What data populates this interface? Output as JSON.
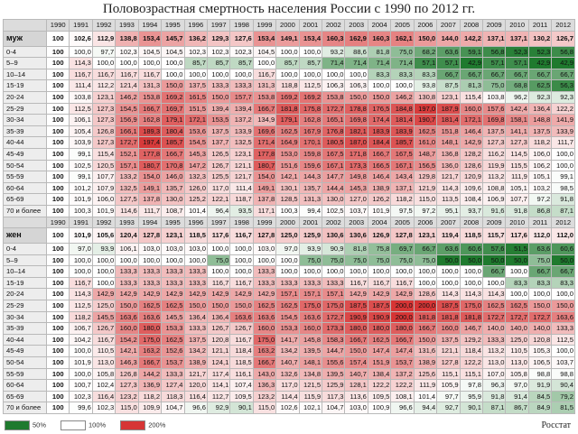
{
  "title": "Половозрастная смертность населения России с 1990 по 2012 гг.",
  "source": "Росстат",
  "legend": [
    {
      "label": "50%",
      "color": "#1f7a2e"
    },
    {
      "label": "100%",
      "color": "#ffffff"
    },
    {
      "label": "200%",
      "color": "#d63535"
    }
  ],
  "sections": [
    {
      "years": [
        "1990",
        "1991",
        "1992",
        "1993",
        "1994",
        "1995",
        "1996",
        "1997",
        "1998",
        "1999",
        "2000",
        "2001",
        "2002",
        "2003",
        "2004",
        "2005",
        "2006",
        "2007",
        "2008",
        "2009",
        "2010",
        "2011",
        "2012"
      ],
      "total": {
        "label": "муж",
        "values": [
          "100",
          "102,6",
          "112,9",
          "138,8",
          "153,4",
          "145,7",
          "136,2",
          "129,3",
          "127,6",
          "153,4",
          "149,1",
          "153,4",
          "160,3",
          "162,9",
          "160,3",
          "162,1",
          "150,0",
          "144,0",
          "142,2",
          "137,1",
          "137,1",
          "130,2",
          "126,7"
        ]
      },
      "rows": [
        {
          "label": "0-4",
          "values": [
            "100",
            "100,0",
            "97,7",
            "102,3",
            "104,5",
            "104,5",
            "102,3",
            "102,3",
            "102,3",
            "104,5",
            "100,0",
            "100,0",
            "93,2",
            "88,6",
            "81,8",
            "75,0",
            "68,2",
            "63,6",
            "59,1",
            "56,8",
            "52,3",
            "52,3",
            "56,8"
          ]
        },
        {
          "label": "5–9",
          "values": [
            "100",
            "114,3",
            "100,0",
            "100,0",
            "100,0",
            "100,0",
            "85,7",
            "85,7",
            "85,7",
            "100,0",
            "85,7",
            "85,7",
            "71,4",
            "71,4",
            "71,4",
            "71,4",
            "57,1",
            "57,1",
            "42,9",
            "57,1",
            "57,1",
            "42,9",
            "42,9"
          ]
        },
        {
          "label": "10–14",
          "values": [
            "100",
            "116,7",
            "116,7",
            "116,7",
            "116,7",
            "100,0",
            "100,0",
            "100,0",
            "100,0",
            "116,7",
            "100,0",
            "100,0",
            "100,0",
            "100,0",
            "83,3",
            "83,3",
            "83,3",
            "66,7",
            "66,7",
            "66,7",
            "66,7",
            "66,7",
            "66,7"
          ]
        },
        {
          "label": "15-19",
          "values": [
            "100",
            "111,4",
            "112,2",
            "121,4",
            "131,3",
            "150,0",
            "137,5",
            "133,3",
            "133,3",
            "131,3",
            "118,8",
            "112,5",
            "106,3",
            "106,3",
            "100,0",
            "100,0",
            "93,8",
            "87,5",
            "81,3",
            "75,0",
            "68,8",
            "62,5",
            "56,3"
          ]
        },
        {
          "label": "20-24",
          "values": [
            "100",
            "103,8",
            "123,1",
            "146,2",
            "153,8",
            "169,2",
            "161,5",
            "150,0",
            "157,7",
            "153,8",
            "169,2",
            "169,2",
            "153,8",
            "150,0",
            "150,0",
            "146,2",
            "130,8",
            "123,1",
            "115,4",
            "103,8",
            "96,2",
            "92,3",
            "92,3"
          ]
        },
        {
          "label": "25-29",
          "values": [
            "100",
            "112,5",
            "127,3",
            "154,5",
            "166,7",
            "169,7",
            "151,5",
            "139,4",
            "139,4",
            "166,7",
            "181,8",
            "175,8",
            "172,7",
            "178,8",
            "176,5",
            "184,8",
            "197,0",
            "187,9",
            "160,0",
            "157,6",
            "142,4",
            "136,4",
            "122,2"
          ]
        },
        {
          "label": "30-34",
          "values": [
            "100",
            "106,1",
            "127,3",
            "156,9",
            "162,8",
            "179,1",
            "172,1",
            "153,5",
            "137,2",
            "134,9",
            "179,1",
            "162,8",
            "165,1",
            "169,8",
            "174,4",
            "181,4",
            "190,7",
            "181,4",
            "172,1",
            "169,8",
            "158,1",
            "148,8",
            "141,9"
          ]
        },
        {
          "label": "35-39",
          "values": [
            "100",
            "105,4",
            "126,8",
            "166,1",
            "189,3",
            "180,4",
            "153,6",
            "137,5",
            "133,9",
            "169,6",
            "162,5",
            "167,9",
            "176,8",
            "182,1",
            "183,9",
            "183,9",
            "162,5",
            "151,8",
            "146,4",
            "137,5",
            "141,1",
            "137,5",
            "133,9"
          ]
        },
        {
          "label": "40-44",
          "values": [
            "100",
            "103,9",
            "127,3",
            "172,7",
            "197,4",
            "185,7",
            "154,5",
            "137,7",
            "132,5",
            "171,4",
            "164,9",
            "170,1",
            "180,5",
            "187,0",
            "184,4",
            "185,7",
            "161,0",
            "148,1",
            "142,9",
            "127,3",
            "127,3",
            "118,2",
            "111,7"
          ]
        },
        {
          "label": "45-49",
          "values": [
            "100",
            "99,1",
            "115,4",
            "152,1",
            "177,8",
            "166,7",
            "145,3",
            "126,5",
            "123,1",
            "177,8",
            "153,0",
            "159,8",
            "167,5",
            "171,8",
            "166,7",
            "167,5",
            "148,7",
            "136,8",
            "128,2",
            "116,2",
            "114,5",
            "106,0",
            "100,0"
          ]
        },
        {
          "label": "50-54",
          "values": [
            "100",
            "102,5",
            "120,5",
            "157,1",
            "180,7",
            "170,8",
            "147,2",
            "126,7",
            "121,1",
            "180,7",
            "151,6",
            "159,6",
            "167,1",
            "173,3",
            "166,5",
            "167,1",
            "156,5",
            "136,0",
            "128,6",
            "119,9",
            "115,5",
            "106,2",
            "100,0"
          ]
        },
        {
          "label": "55-59",
          "values": [
            "100",
            "99,1",
            "107,7",
            "133,2",
            "154,0",
            "146,0",
            "132,3",
            "125,5",
            "121,7",
            "154,0",
            "142,1",
            "144,3",
            "147,7",
            "149,8",
            "146,4",
            "143,4",
            "129,8",
            "121,7",
            "120,9",
            "113,2",
            "111,9",
            "105,1",
            "99,1"
          ]
        },
        {
          "label": "60-64",
          "values": [
            "100",
            "101,2",
            "107,9",
            "132,5",
            "149,1",
            "135,7",
            "126,0",
            "117,0",
            "111,4",
            "149,1",
            "130,1",
            "135,7",
            "144,4",
            "145,3",
            "138,9",
            "137,1",
            "121,9",
            "114,3",
            "109,6",
            "108,8",
            "105,1",
            "103,2",
            "98,5"
          ]
        },
        {
          "label": "65-69",
          "values": [
            "100",
            "101,9",
            "106,0",
            "127,5",
            "137,8",
            "130,0",
            "125,2",
            "122,1",
            "118,7",
            "137,8",
            "128,5",
            "131,3",
            "130,0",
            "127,0",
            "126,2",
            "118,2",
            "115,0",
            "113,5",
            "108,4",
            "106,9",
            "107,7",
            "97,2",
            "91,8"
          ]
        },
        {
          "label": "70 и более",
          "values": [
            "100",
            "100,3",
            "101,9",
            "114,6",
            "111,7",
            "108,7",
            "101,4",
            "96,4",
            "93,5",
            "117,1",
            "100,3",
            "99,4",
            "102,5",
            "103,7",
            "101,9",
            "97,5",
            "97,2",
            "95,1",
            "93,7",
            "91,6",
            "91,8",
            "86,8",
            "87,1"
          ]
        }
      ]
    },
    {
      "years": [
        "1990",
        "1991",
        "1992",
        "1993",
        "1994",
        "1995",
        "1996",
        "1997",
        "1998",
        "1999",
        "2000",
        "2001",
        "2002",
        "2003",
        "2004",
        "2005",
        "2006",
        "2007",
        "2008",
        "2009",
        "2010",
        "2011",
        "2012"
      ],
      "total": {
        "label": "жен",
        "values": [
          "100",
          "101,9",
          "105,6",
          "120,4",
          "127,8",
          "123,1",
          "118,5",
          "117,6",
          "116,7",
          "127,8",
          "125,0",
          "125,9",
          "130,6",
          "130,6",
          "126,9",
          "127,8",
          "123,1",
          "119,4",
          "118,5",
          "115,7",
          "117,6",
          "112,0",
          "112,0"
        ]
      },
      "rows": [
        {
          "label": "0-4",
          "values": [
            "100",
            "97,0",
            "93,9",
            "106,1",
            "103,0",
            "103,0",
            "103,0",
            "100,0",
            "100,0",
            "103,0",
            "97,0",
            "93,9",
            "90,9",
            "81,8",
            "75,8",
            "69,7",
            "66,7",
            "63,6",
            "60,6",
            "57,6",
            "51,5",
            "63,6",
            "60,6"
          ]
        },
        {
          "label": "5–9",
          "values": [
            "100",
            "100,0",
            "100,0",
            "100,0",
            "100,0",
            "100,0",
            "100,0",
            "75,0",
            "100,0",
            "100,0",
            "100,0",
            "75,0",
            "75,0",
            "75,0",
            "75,0",
            "75,0",
            "75,0",
            "50,0",
            "50,0",
            "50,0",
            "50,0",
            "75,0",
            "50,0"
          ]
        },
        {
          "label": "10–14",
          "values": [
            "100",
            "100,0",
            "100,0",
            "133,3",
            "133,3",
            "133,3",
            "133,3",
            "100,0",
            "100,0",
            "133,3",
            "100,0",
            "100,0",
            "100,0",
            "100,0",
            "100,0",
            "100,0",
            "100,0",
            "100,0",
            "100,0",
            "66,7",
            "100,0",
            "66,7",
            "66,7"
          ]
        },
        {
          "label": "15-19",
          "values": [
            "100",
            "116,7",
            "100,0",
            "133,3",
            "133,3",
            "133,3",
            "133,3",
            "116,7",
            "116,7",
            "133,3",
            "133,3",
            "133,3",
            "133,3",
            "116,7",
            "116,7",
            "116,7",
            "100,0",
            "100,0",
            "100,0",
            "100,0",
            "83,3",
            "83,3",
            "83,3"
          ]
        },
        {
          "label": "20-24",
          "values": [
            "100",
            "114,3",
            "142,9",
            "142,9",
            "142,9",
            "142,9",
            "142,9",
            "142,9",
            "142,9",
            "142,9",
            "157,1",
            "157,1",
            "157,1",
            "142,9",
            "142,9",
            "142,9",
            "128,6",
            "114,3",
            "114,3",
            "114,3",
            "100,0",
            "100,0",
            "100,0"
          ]
        },
        {
          "label": "25-29",
          "values": [
            "100",
            "112,5",
            "125,0",
            "150,0",
            "162,5",
            "162,5",
            "150,0",
            "150,0",
            "150,0",
            "162,5",
            "162,5",
            "175,0",
            "175,0",
            "187,5",
            "187,5",
            "200,0",
            "200,0",
            "187,5",
            "175,0",
            "162,5",
            "162,5",
            "150,0",
            "150,0"
          ]
        },
        {
          "label": "30-34",
          "values": [
            "100",
            "118,2",
            "145,5",
            "163,6",
            "163,6",
            "145,5",
            "136,4",
            "136,4",
            "163,6",
            "163,6",
            "154,5",
            "163,6",
            "172,7",
            "190,9",
            "190,9",
            "200,0",
            "181,8",
            "181,8",
            "181,8",
            "172,7",
            "172,7",
            "172,7",
            "163,6"
          ]
        },
        {
          "label": "35-39",
          "values": [
            "100",
            "106,7",
            "126,7",
            "160,0",
            "180,0",
            "153,3",
            "133,3",
            "126,7",
            "126,7",
            "160,0",
            "153,3",
            "160,0",
            "173,3",
            "180,0",
            "180,0",
            "180,0",
            "166,7",
            "160,0",
            "146,7",
            "140,0",
            "140,0",
            "140,0",
            "133,3"
          ]
        },
        {
          "label": "40-44",
          "values": [
            "100",
            "104,2",
            "116,7",
            "154,2",
            "175,0",
            "162,5",
            "137,5",
            "120,8",
            "116,7",
            "175,0",
            "141,7",
            "145,8",
            "158,3",
            "166,7",
            "162,5",
            "166,7",
            "150,0",
            "137,5",
            "129,2",
            "133,3",
            "125,0",
            "120,8",
            "112,5"
          ]
        },
        {
          "label": "45-49",
          "values": [
            "100",
            "100,0",
            "110,5",
            "142,1",
            "163,2",
            "152,6",
            "134,2",
            "121,1",
            "118,4",
            "163,2",
            "134,2",
            "139,5",
            "144,7",
            "150,0",
            "147,4",
            "147,4",
            "131,6",
            "121,1",
            "118,4",
            "113,2",
            "110,5",
            "105,3",
            "100,0"
          ]
        },
        {
          "label": "50-54",
          "values": [
            "100",
            "101,9",
            "113,0",
            "146,3",
            "166,7",
            "153,7",
            "138,9",
            "124,1",
            "118,5",
            "166,7",
            "140,7",
            "148,1",
            "155,6",
            "157,4",
            "151,9",
            "153,7",
            "138,9",
            "127,8",
            "122,2",
            "113,0",
            "113,0",
            "106,5",
            "103,7"
          ]
        },
        {
          "label": "55-59",
          "values": [
            "100",
            "100,0",
            "105,8",
            "126,8",
            "144,2",
            "133,3",
            "121,7",
            "117,4",
            "116,1",
            "143,0",
            "132,6",
            "134,8",
            "139,5",
            "140,7",
            "138,4",
            "137,2",
            "125,6",
            "115,1",
            "115,1",
            "107,0",
            "105,8",
            "98,8",
            "98,8"
          ]
        },
        {
          "label": "60-64",
          "values": [
            "100",
            "100,7",
            "102,4",
            "127,3",
            "136,9",
            "127,4",
            "120,0",
            "114,1",
            "107,4",
            "136,3",
            "117,0",
            "121,5",
            "125,9",
            "128,1",
            "122,2",
            "122,2",
            "111,9",
            "105,9",
            "97,8",
            "96,3",
            "97,0",
            "91,9",
            "90,4"
          ]
        },
        {
          "label": "65-69",
          "values": [
            "100",
            "102,3",
            "116,4",
            "123,2",
            "118,2",
            "118,3",
            "116,4",
            "112,7",
            "109,5",
            "123,2",
            "114,4",
            "115,9",
            "117,3",
            "113,6",
            "109,5",
            "108,1",
            "101,4",
            "97,7",
            "95,9",
            "91,8",
            "91,4",
            "84,5",
            "79,2"
          ]
        },
        {
          "label": "70 и более",
          "values": [
            "100",
            "99,6",
            "102,3",
            "115,0",
            "109,9",
            "104,7",
            "96,6",
            "92,9",
            "90,1",
            "115,0",
            "102,6",
            "102,1",
            "104,7",
            "103,0",
            "100,9",
            "96,6",
            "94,4",
            "92,7",
            "90,1",
            "87,1",
            "86,7",
            "84,9",
            "81,5"
          ]
        }
      ]
    }
  ]
}
